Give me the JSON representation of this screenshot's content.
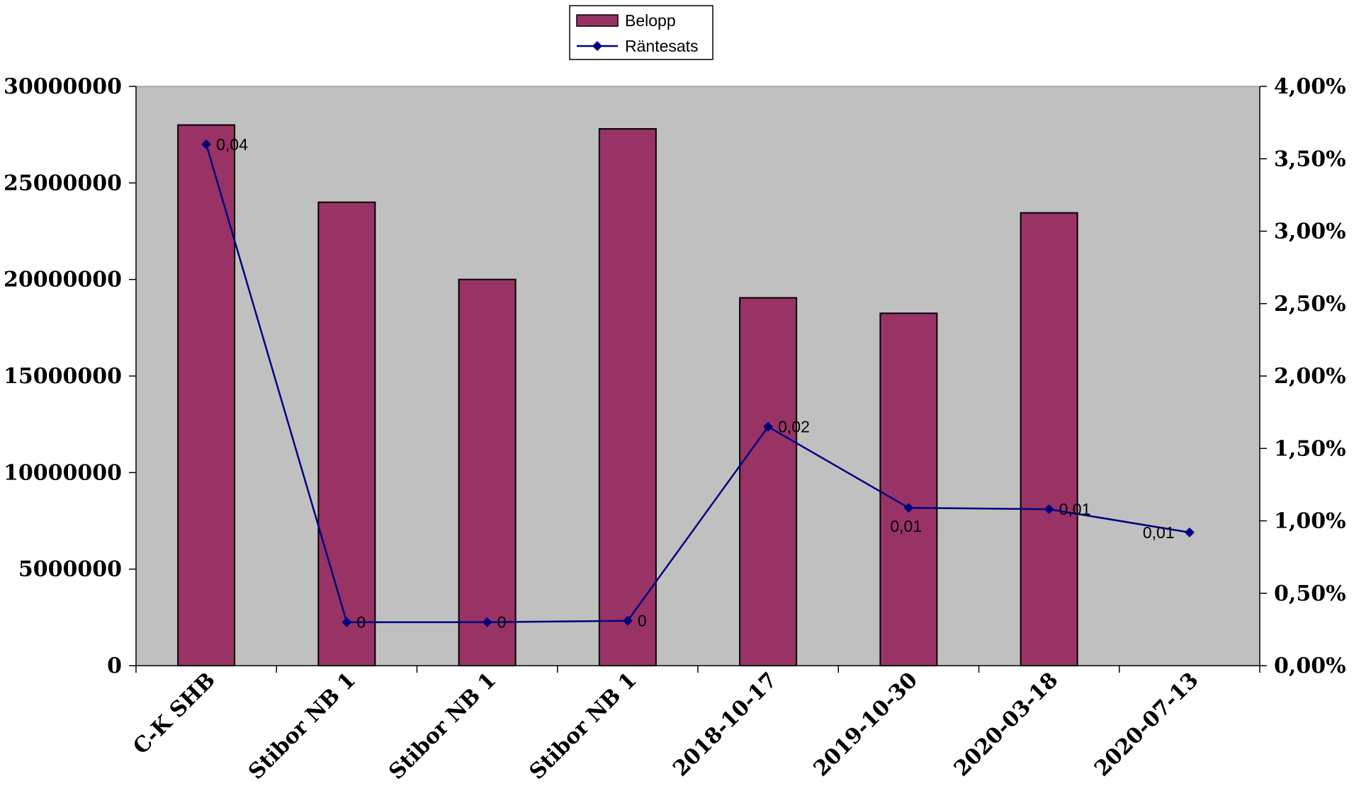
{
  "chart_data": {
    "type": "bar",
    "categories": [
      "C-K SHB",
      "Stibor NB 1",
      "Stibor NB 1",
      "Stibor NB 1",
      "2018-10-17",
      "2019-10-30",
      "2020-03-18",
      "2020-07-13"
    ],
    "series": [
      {
        "name": "Belopp",
        "type": "bar",
        "axis": "left",
        "values": [
          28000000,
          24000000,
          20000000,
          27800000,
          19050000,
          18250000,
          23450000,
          null
        ],
        "color": "#993366"
      },
      {
        "name": "Räntesats",
        "type": "line",
        "axis": "right",
        "values": [
          0.036,
          0.003,
          0.003,
          0.0031,
          0.0165,
          0.0109,
          0.0108,
          0.0092
        ],
        "data_labels": [
          "0,04",
          "0",
          "0",
          "0",
          "0,02",
          "0,01",
          "0,01",
          "0,01"
        ],
        "color": "#000080"
      }
    ],
    "y_left": {
      "ylim": [
        0,
        30000000
      ],
      "ticks": [
        0,
        5000000,
        10000000,
        15000000,
        20000000,
        25000000,
        30000000
      ],
      "tick_labels": [
        "0",
        "5000000",
        "10000000",
        "15000000",
        "20000000",
        "25000000",
        "30000000"
      ]
    },
    "y_right": {
      "ylim": [
        0,
        0.04
      ],
      "ticks": [
        0,
        0.005,
        0.01,
        0.015,
        0.02,
        0.025,
        0.03,
        0.035,
        0.04
      ],
      "tick_labels": [
        "0,00%",
        "0,50%",
        "1,00%",
        "1,50%",
        "2,00%",
        "2,50%",
        "3,00%",
        "3,50%",
        "4,00%"
      ]
    },
    "legend": {
      "placement": "top-center",
      "entries": [
        "Belopp",
        "Räntesats"
      ]
    },
    "plot_background": "#c0c0c0",
    "grid": false,
    "title": "",
    "xlabel": "",
    "ylabel": ""
  }
}
